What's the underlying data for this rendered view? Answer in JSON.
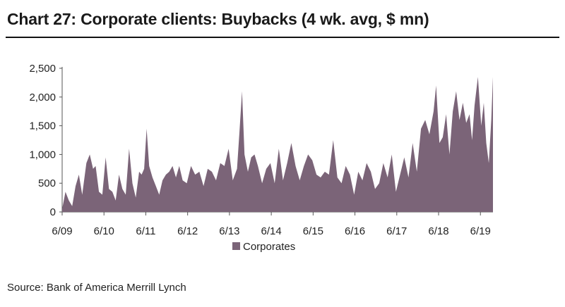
{
  "title": "Chart 27: Corporate clients: Buybacks (4 wk. avg, $ mn)",
  "source": "Source: Bank of America Merrill Lynch",
  "colors": {
    "series": "#7b6478",
    "axis": "#555555"
  },
  "chart_data": {
    "type": "area",
    "title": "Chart 27: Corporate clients: Buybacks (4 wk. avg, $ mn)",
    "xlabel": "",
    "ylabel": "",
    "ylim": [
      0,
      2500
    ],
    "yticks": [
      "0",
      "500",
      "1,000",
      "1,500",
      "2,000",
      "2,500"
    ],
    "ytick_values": [
      0,
      500,
      1000,
      1500,
      2000,
      2500
    ],
    "xlim": [
      2009.42,
      2019.72
    ],
    "xticks": [
      "6/09",
      "6/10",
      "6/11",
      "6/12",
      "6/13",
      "6/14",
      "6/15",
      "6/16",
      "6/17",
      "6/18",
      "6/19"
    ],
    "xtick_values": [
      2009.42,
      2010.42,
      2011.42,
      2012.42,
      2013.42,
      2014.42,
      2015.42,
      2016.42,
      2017.42,
      2018.42,
      2019.42
    ],
    "legend": "bottom-center",
    "grid": false,
    "series": [
      {
        "name": "Corporates",
        "x": [
          2009.42,
          2009.5,
          2009.58,
          2009.66,
          2009.74,
          2009.82,
          2009.9,
          2010.0,
          2010.08,
          2010.16,
          2010.22,
          2010.3,
          2010.38,
          2010.46,
          2010.54,
          2010.62,
          2010.7,
          2010.78,
          2010.86,
          2010.94,
          2011.02,
          2011.1,
          2011.18,
          2011.26,
          2011.32,
          2011.38,
          2011.44,
          2011.5,
          2011.58,
          2011.66,
          2011.74,
          2011.82,
          2011.9,
          2011.98,
          2012.06,
          2012.14,
          2012.22,
          2012.3,
          2012.4,
          2012.5,
          2012.6,
          2012.7,
          2012.8,
          2012.9,
          2013.0,
          2013.1,
          2013.2,
          2013.3,
          2013.4,
          2013.5,
          2013.6,
          2013.66,
          2013.72,
          2013.78,
          2013.86,
          2013.94,
          2014.02,
          2014.1,
          2014.2,
          2014.3,
          2014.4,
          2014.5,
          2014.6,
          2014.7,
          2014.8,
          2014.9,
          2015.0,
          2015.1,
          2015.2,
          2015.3,
          2015.4,
          2015.5,
          2015.6,
          2015.7,
          2015.8,
          2015.9,
          2016.0,
          2016.1,
          2016.2,
          2016.3,
          2016.4,
          2016.5,
          2016.6,
          2016.7,
          2016.8,
          2016.9,
          2017.0,
          2017.1,
          2017.2,
          2017.3,
          2017.4,
          2017.5,
          2017.6,
          2017.7,
          2017.8,
          2017.9,
          2018.0,
          2018.1,
          2018.2,
          2018.3,
          2018.36,
          2018.44,
          2018.52,
          2018.6,
          2018.68,
          2018.76,
          2018.84,
          2018.92,
          2019.0,
          2019.08,
          2019.16,
          2019.22,
          2019.28,
          2019.36,
          2019.44,
          2019.5,
          2019.56,
          2019.62,
          2019.68,
          2019.72
        ],
        "values": [
          50,
          350,
          200,
          100,
          450,
          650,
          300,
          850,
          1000,
          750,
          800,
          350,
          300,
          950,
          400,
          350,
          200,
          650,
          400,
          300,
          1100,
          500,
          250,
          700,
          650,
          750,
          1450,
          800,
          600,
          450,
          300,
          550,
          650,
          700,
          800,
          600,
          800,
          550,
          500,
          800,
          650,
          700,
          450,
          750,
          700,
          550,
          850,
          800,
          1100,
          550,
          750,
          1400,
          2100,
          1000,
          700,
          950,
          1000,
          800,
          500,
          750,
          850,
          500,
          1100,
          550,
          850,
          1200,
          800,
          550,
          800,
          1000,
          900,
          650,
          600,
          700,
          650,
          1250,
          600,
          500,
          800,
          650,
          300,
          700,
          550,
          850,
          700,
          400,
          500,
          850,
          600,
          1000,
          350,
          650,
          950,
          600,
          1200,
          700,
          1450,
          1600,
          1350,
          1750,
          2200,
          1200,
          1300,
          1700,
          1000,
          1750,
          2100,
          1600,
          1900,
          1550,
          1700,
          1250,
          1850,
          2350,
          1500,
          1900,
          1200,
          850,
          1600,
          2350
        ]
      }
    ]
  }
}
